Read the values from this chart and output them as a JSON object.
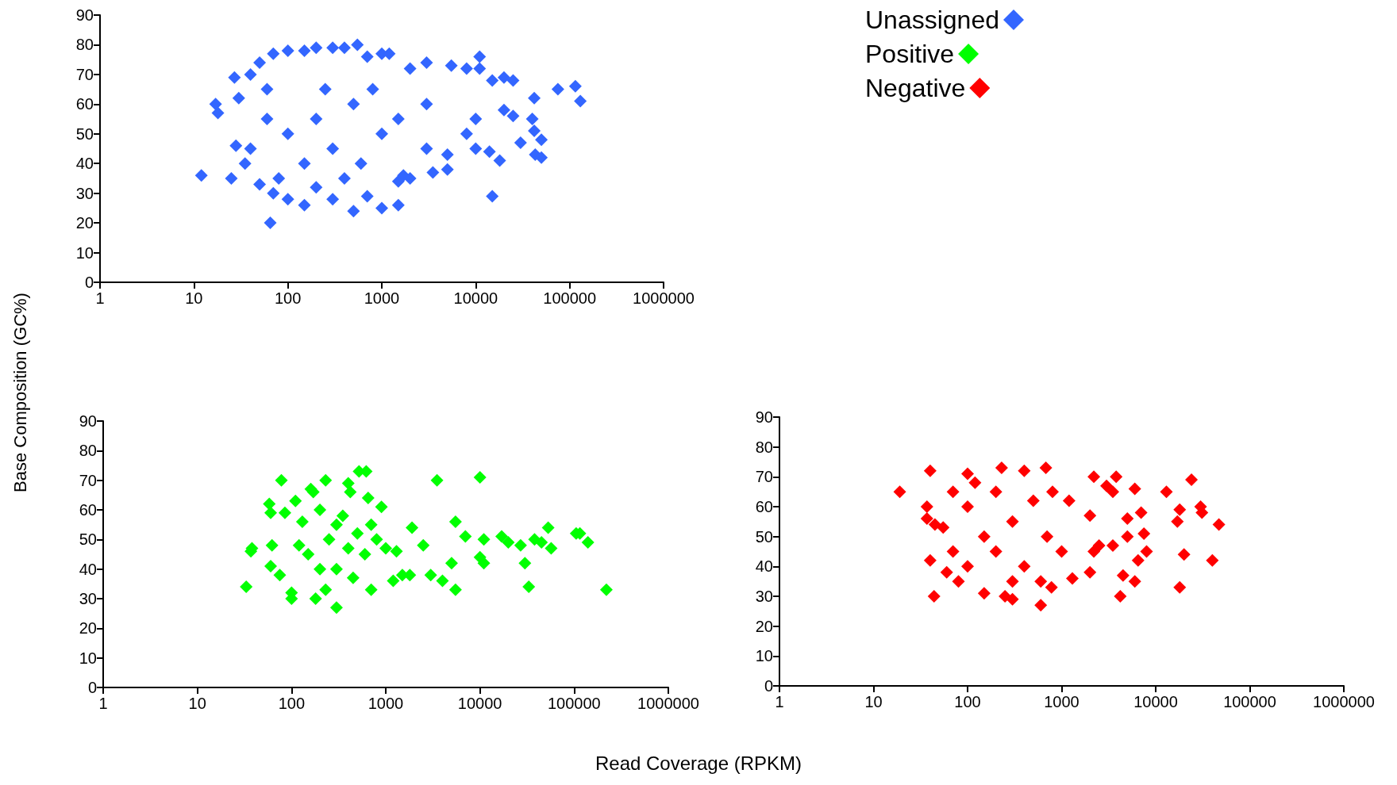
{
  "chart_data": [
    {
      "type": "scatter",
      "ylabel": "Base Composition (GC%)",
      "marker": "diamond",
      "log": "x",
      "legend": "top right",
      "xlim": [
        1,
        1000000
      ],
      "xticks": [
        1,
        10,
        100,
        1000,
        10000,
        100000,
        1000000
      ],
      "ylim": [
        0,
        90
      ],
      "yticks": [
        0,
        10,
        20,
        30,
        40,
        50,
        60,
        70,
        80,
        90
      ],
      "series": [
        {
          "name": "Unassigned",
          "color": "#3366ff",
          "x": [
            12,
            17,
            18,
            25,
            27,
            30,
            28,
            35,
            65,
            80,
            150,
            300,
            500,
            1000,
            1500,
            550,
            1000,
            1200,
            3000,
            5500,
            8000,
            11000,
            11000,
            15000,
            20000,
            25000,
            42000,
            75000,
            115000,
            130000,
            40000,
            42000,
            50000,
            43000,
            50000,
            18000,
            14000,
            15000,
            30000,
            20000,
            25000,
            5000,
            3500,
            1500,
            1700,
            8000,
            40,
            40,
            50,
            50,
            70,
            70,
            100,
            100,
            150,
            200,
            300,
            400,
            700,
            700,
            2000,
            2000,
            5000,
            10000,
            10000,
            100,
            200,
            300,
            500,
            1000,
            150,
            250,
            600,
            800,
            1500,
            3000,
            3000,
            60,
            60,
            400,
            200
          ],
          "values": [
            36,
            60,
            57,
            35,
            69,
            62,
            46,
            40,
            20,
            35,
            26,
            28,
            24,
            25,
            26,
            80,
            77,
            77,
            74,
            73,
            72,
            76,
            72,
            68,
            69,
            68,
            62,
            65,
            66,
            61,
            55,
            51,
            48,
            43,
            42,
            41,
            44,
            29,
            47,
            58,
            56,
            43,
            37,
            34,
            36,
            50,
            70,
            45,
            74,
            33,
            77,
            30,
            78,
            28,
            78,
            79,
            79,
            79,
            76,
            29,
            72,
            35,
            38,
            55,
            45,
            50,
            55,
            45,
            60,
            50,
            40,
            65,
            40,
            65,
            55,
            60,
            45,
            55,
            65,
            35,
            32
          ]
        }
      ]
    },
    {
      "type": "scatter",
      "xlabel": "Read Coverage (RPKM)",
      "marker": "diamond",
      "log": "x",
      "legend": "top right",
      "xlim": [
        1,
        1000000
      ],
      "xticks": [
        1,
        10,
        100,
        1000,
        10000,
        100000,
        1000000
      ],
      "ylim": [
        0,
        90
      ],
      "yticks": [
        0,
        10,
        20,
        30,
        40,
        50,
        60,
        70,
        80,
        90
      ],
      "series": [
        {
          "name": "Positive",
          "color": "#00ff00",
          "x": [
            33,
            37,
            38,
            58,
            60,
            62,
            60,
            78,
            75,
            85,
            100,
            110,
            100,
            130,
            160,
            170,
            180,
            230,
            300,
            200,
            230,
            300,
            400,
            420,
            520,
            620,
            650,
            900,
            700,
            1000,
            1200,
            1500,
            1900,
            1800,
            2500,
            3000,
            3500,
            4000,
            5000,
            5500,
            5500,
            7000,
            10000,
            10000,
            11000,
            11000,
            17000,
            20000,
            27000,
            30000,
            33000,
            38000,
            45000,
            53000,
            57000,
            105000,
            115000,
            140000,
            220000,
            150,
            250,
            300,
            400,
            500,
            600,
            800,
            200,
            350,
            120,
            700,
            450,
            1300
          ],
          "values": [
            34,
            46,
            47,
            62,
            41,
            48,
            59,
            70,
            38,
            59,
            32,
            63,
            30,
            56,
            67,
            66,
            30,
            70,
            27,
            60,
            33,
            55,
            69,
            66,
            73,
            73,
            64,
            61,
            33,
            47,
            36,
            38,
            54,
            38,
            48,
            38,
            70,
            36,
            42,
            56,
            33,
            51,
            71,
            44,
            50,
            42,
            51,
            49,
            48,
            42,
            34,
            50,
            49,
            54,
            47,
            52,
            52,
            49,
            33,
            45,
            50,
            40,
            47,
            52,
            45,
            50,
            40,
            58,
            48,
            55,
            37,
            46
          ]
        }
      ]
    },
    {
      "type": "scatter",
      "marker": "diamond",
      "log": "x",
      "legend": "top",
      "xlim": [
        1,
        1000000
      ],
      "xticks": [
        1,
        10,
        100,
        1000,
        10000,
        100000,
        1000000
      ],
      "ylim": [
        0,
        90
      ],
      "yticks": [
        0,
        10,
        20,
        30,
        40,
        50,
        60,
        70,
        80,
        90
      ],
      "series": [
        {
          "name": "Negative",
          "color": "#ff0000",
          "x": [
            19,
            40,
            37,
            37,
            45,
            44,
            40,
            55,
            60,
            80,
            100,
            150,
            230,
            250,
            300,
            400,
            600,
            680,
            780,
            1200,
            1300,
            2000,
            2000,
            2200,
            3000,
            3500,
            3800,
            5000,
            4500,
            4200,
            6000,
            6000,
            7000,
            7500,
            8000,
            6500,
            13000,
            18000,
            17000,
            20000,
            18000,
            24000,
            30000,
            31000,
            47000,
            40000,
            2500,
            3500,
            5000,
            2200,
            100,
            100,
            200,
            200,
            300,
            400,
            500,
            700,
            150,
            300,
            800,
            1000,
            600,
            120,
            70,
            70
          ],
          "values": [
            65,
            72,
            60,
            56,
            54,
            30,
            42,
            53,
            38,
            35,
            71,
            31,
            73,
            30,
            29,
            72,
            27,
            73,
            33,
            62,
            36,
            38,
            57,
            70,
            67,
            65,
            70,
            56,
            37,
            30,
            35,
            66,
            58,
            51,
            45,
            42,
            65,
            59,
            55,
            44,
            33,
            69,
            60,
            58,
            54,
            42,
            47,
            47,
            50,
            45,
            60,
            40,
            65,
            45,
            55,
            40,
            62,
            50,
            50,
            35,
            65,
            45,
            35,
            68,
            65,
            45
          ]
        }
      ]
    }
  ]
}
